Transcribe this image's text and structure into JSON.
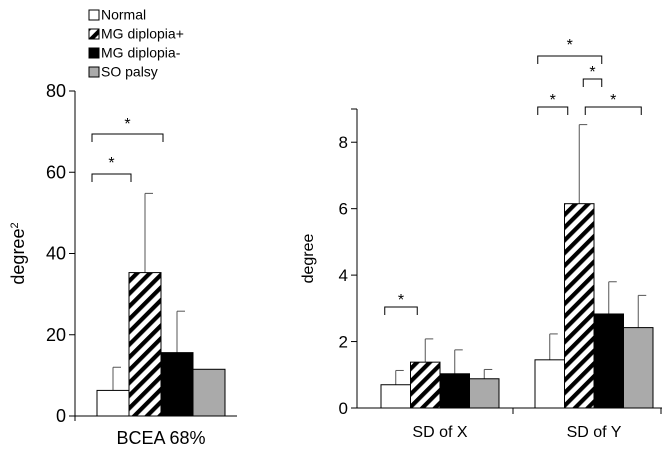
{
  "chart_data": [
    {
      "type": "bar",
      "categories": [
        "BCEA 68%"
      ],
      "ylabel": "degree",
      "ylabel_superscript": "2",
      "ylim": [
        0,
        80
      ],
      "yticks": [
        "0",
        "20",
        "40",
        "60",
        "80"
      ],
      "series": [
        {
          "name": "Normal",
          "values": [
            6.3
          ],
          "errors": [
            5.7
          ]
        },
        {
          "name": "MG diplopia+",
          "values": [
            35.3
          ],
          "errors": [
            19.5
          ]
        },
        {
          "name": "MG diplopia-",
          "values": [
            15.6
          ],
          "errors": [
            10.2
          ]
        },
        {
          "name": "SO palsy",
          "values": [
            11.5
          ],
          "errors": [
            0
          ]
        }
      ],
      "significance": [
        {
          "category": 0,
          "from": 0,
          "to": 1,
          "label": "*"
        },
        {
          "category": 0,
          "from": 0,
          "to": 2,
          "label": "*"
        }
      ]
    },
    {
      "type": "bar",
      "categories": [
        "SD of X",
        "SD of Y"
      ],
      "ylabel": "degree",
      "ylim": [
        0,
        9
      ],
      "yticks": [
        "0",
        "2",
        "4",
        "6",
        "8"
      ],
      "series": [
        {
          "name": "Normal",
          "values": [
            0.7,
            1.45
          ],
          "errors": [
            0.43,
            0.78
          ]
        },
        {
          "name": "MG diplopia+",
          "values": [
            1.38,
            6.15
          ],
          "errors": [
            0.7,
            2.38
          ]
        },
        {
          "name": "MG diplopia-",
          "values": [
            1.03,
            2.83
          ],
          "errors": [
            0.72,
            0.97
          ]
        },
        {
          "name": "SO palsy",
          "values": [
            0.88,
            2.42
          ],
          "errors": [
            0.28,
            0.97
          ]
        }
      ],
      "significance": [
        {
          "category": 0,
          "from": 0,
          "to": 1,
          "label": "*"
        },
        {
          "category": 1,
          "from": 0,
          "to": 1,
          "label": "*"
        },
        {
          "category": 1,
          "from": 1,
          "to": 3,
          "label": "*"
        },
        {
          "category": 1,
          "from": 1,
          "to": 2,
          "label": "*"
        },
        {
          "category": 1,
          "from": 0,
          "to": 2,
          "label": "*"
        }
      ]
    }
  ],
  "legend": {
    "placement": "top-left",
    "items": [
      {
        "label": "Normal",
        "fill": "#ffffff",
        "pattern": "none"
      },
      {
        "label": "MG diplopia+",
        "fill": "#ffffff",
        "pattern": "diagonal-hatch"
      },
      {
        "label": "MG diplopia-",
        "fill": "#000000",
        "pattern": "none"
      },
      {
        "label": "SO palsy",
        "fill": "#aaaaaa",
        "pattern": "none"
      }
    ]
  },
  "colors": {
    "normal": "#ffffff",
    "hatch": "#000000",
    "mg_minus": "#000000",
    "so_palsy": "#aaaaaa",
    "axis": "#000000",
    "bracket": "#000000"
  }
}
